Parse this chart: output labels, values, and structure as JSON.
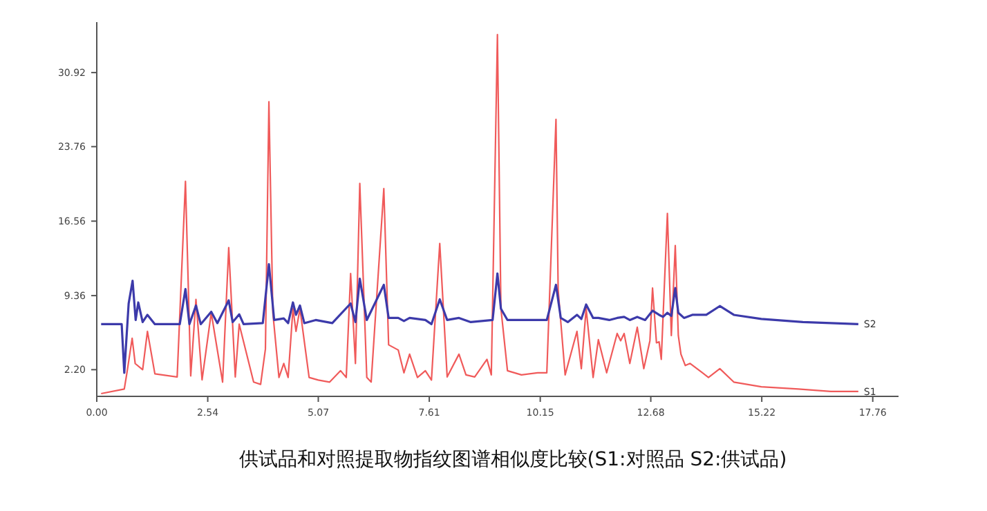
{
  "chart_data": {
    "type": "line",
    "title": "供试品和对照提取物指纹图谱相似度比较(S1:对照品 S2:供试品)",
    "xlim": [
      0,
      18.35
    ],
    "ylim": [
      -0.38,
      35.8
    ],
    "xticks": [
      {
        "value": 0,
        "label": "0.00"
      },
      {
        "value": 2.54,
        "label": "2.54"
      },
      {
        "value": 5.07,
        "label": "5.07"
      },
      {
        "value": 7.61,
        "label": "7.61"
      },
      {
        "value": 10.15,
        "label": "10.15"
      },
      {
        "value": 12.68,
        "label": "12.68"
      },
      {
        "value": 15.22,
        "label": "15.22"
      },
      {
        "value": 17.76,
        "label": "17.76"
      }
    ],
    "yticks": [
      {
        "value": 2.2,
        "label": "2.20"
      },
      {
        "value": 9.36,
        "label": "9.36"
      },
      {
        "value": 16.56,
        "label": "16.56"
      },
      {
        "value": 23.76,
        "label": "23.76"
      },
      {
        "value": 30.92,
        "label": "30.92"
      }
    ],
    "grid": false,
    "legend": false,
    "line_style": "solid",
    "series": [
      {
        "name": "S1",
        "color": "#f05a5a",
        "x": [
          0.1,
          0.63,
          0.69,
          0.81,
          0.88,
          1.05,
          1.16,
          1.33,
          1.84,
          2.03,
          2.15,
          2.27,
          2.41,
          2.62,
          2.88,
          3.02,
          3.17,
          3.26,
          3.59,
          3.75,
          3.86,
          3.94,
          4.03,
          4.17,
          4.28,
          4.38,
          4.49,
          4.56,
          4.65,
          4.86,
          5.07,
          5.33,
          5.58,
          5.71,
          5.81,
          5.92,
          6.02,
          6.18,
          6.28,
          6.57,
          6.68,
          6.9,
          7.03,
          7.16,
          7.34,
          7.52,
          7.66,
          7.85,
          8.02,
          8.29,
          8.45,
          8.65,
          8.93,
          9.03,
          9.17,
          9.25,
          9.4,
          9.72,
          10.09,
          10.3,
          10.51,
          10.56,
          10.72,
          10.99,
          11.09,
          11.2,
          11.36,
          11.48,
          11.67,
          11.91,
          11.99,
          12.07,
          12.2,
          12.37,
          12.52,
          12.66,
          12.72,
          12.81,
          12.87,
          12.92,
          13.06,
          13.15,
          13.24,
          13.31,
          13.37,
          13.47,
          13.58,
          14.0,
          14.26,
          14.58,
          15.21,
          16.06,
          16.8,
          17.43
        ],
        "values": [
          -0.11,
          0.33,
          1.89,
          5.24,
          2.79,
          2.2,
          5.9,
          1.8,
          1.5,
          20.4,
          1.6,
          9.0,
          1.22,
          7.7,
          1.0,
          14.0,
          1.5,
          6.6,
          1.0,
          0.78,
          4.2,
          28.1,
          7.7,
          1.45,
          2.8,
          1.45,
          8.1,
          5.9,
          8.1,
          1.45,
          1.2,
          1.0,
          2.1,
          1.45,
          11.5,
          2.8,
          20.2,
          1.45,
          1.0,
          19.7,
          4.6,
          4.1,
          1.9,
          3.7,
          1.45,
          2.1,
          1.2,
          14.4,
          1.5,
          3.7,
          1.7,
          1.5,
          3.2,
          1.7,
          34.6,
          8.1,
          2.1,
          1.7,
          1.9,
          1.9,
          26.4,
          9.9,
          1.7,
          5.9,
          2.3,
          8.1,
          1.45,
          5.1,
          1.9,
          5.7,
          5.0,
          5.7,
          2.8,
          6.3,
          2.3,
          5.0,
          10.1,
          4.8,
          4.9,
          3.2,
          17.3,
          5.5,
          14.2,
          5.5,
          3.7,
          2.6,
          2.8,
          1.45,
          2.3,
          1.0,
          0.55,
          0.33,
          0.1,
          0.1
        ]
      },
      {
        "name": "S2",
        "color": "#3c3aaa",
        "x": [
          0.1,
          0.57,
          0.63,
          0.73,
          0.82,
          0.89,
          0.95,
          1.05,
          1.16,
          1.33,
          1.9,
          2.03,
          2.12,
          2.27,
          2.38,
          2.62,
          2.76,
          3.02,
          3.11,
          3.26,
          3.36,
          3.8,
          3.94,
          4.06,
          4.28,
          4.38,
          4.49,
          4.56,
          4.65,
          4.75,
          5.01,
          5.39,
          5.81,
          5.92,
          6.02,
          6.18,
          6.57,
          6.68,
          6.9,
          7.03,
          7.16,
          7.52,
          7.66,
          7.85,
          8.02,
          8.29,
          8.56,
          9.06,
          9.17,
          9.25,
          9.4,
          10.3,
          10.51,
          10.62,
          10.78,
          10.99,
          11.09,
          11.2,
          11.36,
          11.48,
          11.73,
          11.91,
          12.07,
          12.2,
          12.37,
          12.55,
          12.72,
          12.87,
          12.96,
          13.06,
          13.15,
          13.24,
          13.31,
          13.44,
          13.63,
          13.95,
          14.26,
          14.58,
          15.21,
          16.16,
          16.8,
          17.43
        ],
        "values": [
          6.6,
          6.6,
          1.9,
          8.6,
          10.8,
          7.0,
          8.7,
          6.8,
          7.5,
          6.6,
          6.6,
          10.0,
          6.6,
          8.4,
          6.6,
          7.8,
          6.7,
          8.9,
          6.8,
          7.55,
          6.6,
          6.7,
          12.4,
          7.0,
          7.15,
          6.7,
          8.7,
          7.5,
          8.4,
          6.7,
          7.0,
          6.7,
          8.6,
          6.8,
          11.0,
          7.0,
          10.4,
          7.2,
          7.2,
          6.9,
          7.2,
          7.0,
          6.6,
          9.0,
          7.0,
          7.2,
          6.8,
          7.0,
          11.5,
          8.1,
          7.0,
          7.0,
          10.4,
          7.2,
          6.8,
          7.5,
          7.1,
          8.5,
          7.2,
          7.2,
          7.0,
          7.2,
          7.3,
          7.0,
          7.3,
          7.0,
          7.9,
          7.5,
          7.3,
          7.7,
          7.4,
          10.1,
          7.7,
          7.2,
          7.5,
          7.5,
          8.35,
          7.5,
          7.1,
          6.8,
          6.7,
          6.6
        ]
      }
    ]
  }
}
